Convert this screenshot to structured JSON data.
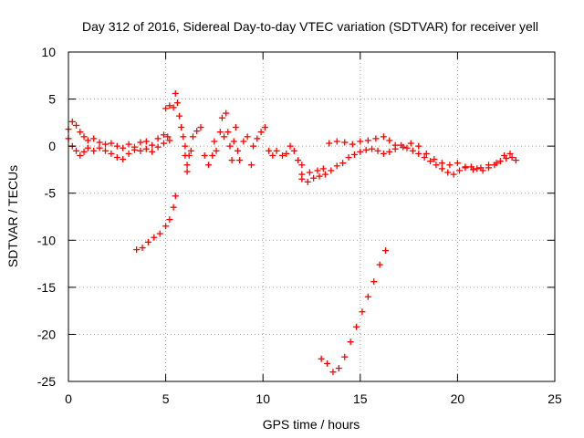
{
  "chart_data": {
    "type": "scatter",
    "title": "Day 312 of 2016, Sidereal Day-to-day VTEC variation (SDTVAR) for receiver yell",
    "xlabel": "GPS time / hours",
    "ylabel": "SDTVAR / TECUs",
    "xlim": [
      0,
      25
    ],
    "ylim": [
      -25,
      10
    ],
    "xticks": [
      "0",
      "5",
      "10",
      "15",
      "20",
      "25"
    ],
    "yticks": [
      "-25",
      "-20",
      "-15",
      "-10",
      "-5",
      "0",
      "5",
      "10"
    ],
    "xtick_values": [
      0,
      5,
      10,
      15,
      20,
      25
    ],
    "ytick_values": [
      -25,
      -20,
      -15,
      -10,
      -5,
      0,
      5,
      10
    ],
    "grid": true,
    "marker": "+",
    "marker_color": "#ff0000",
    "series": [
      {
        "name": "SDTVAR",
        "segments": [
          [
            [
              0.0,
              1.8
            ],
            [
              0.2,
              2.6
            ],
            [
              0.4,
              2.2
            ],
            [
              0.6,
              1.5
            ],
            [
              0.8,
              1.0
            ],
            [
              1.0,
              0.6
            ],
            [
              1.3,
              0.8
            ],
            [
              1.6,
              0.4
            ],
            [
              1.9,
              0.2
            ],
            [
              2.2,
              0.3
            ],
            [
              2.5,
              0.0
            ],
            [
              2.8,
              -0.2
            ],
            [
              3.1,
              0.2
            ],
            [
              3.4,
              -0.1
            ],
            [
              3.7,
              0.4
            ],
            [
              4.0,
              0.5
            ],
            [
              4.3,
              0.1
            ],
            [
              4.6,
              0.8
            ],
            [
              4.9,
              1.2
            ],
            [
              5.1,
              1.0
            ]
          ],
          [
            [
              0.0,
              0.8
            ],
            [
              0.2,
              0.0
            ],
            [
              0.4,
              -0.5
            ],
            [
              0.6,
              -1.0
            ],
            [
              0.8,
              -0.6
            ],
            [
              1.0,
              -0.2
            ],
            [
              1.3,
              -0.5
            ],
            [
              1.6,
              -0.2
            ],
            [
              1.9,
              -0.5
            ],
            [
              2.2,
              -0.8
            ],
            [
              2.5,
              -1.2
            ],
            [
              2.8,
              -1.4
            ],
            [
              3.1,
              -0.8
            ],
            [
              3.4,
              -0.4
            ],
            [
              3.7,
              -0.5
            ],
            [
              4.0,
              -0.3
            ],
            [
              4.3,
              -0.6
            ],
            [
              4.6,
              -0.1
            ],
            [
              4.9,
              0.3
            ],
            [
              5.2,
              0.6
            ]
          ],
          [
            [
              5.0,
              4.0
            ],
            [
              5.2,
              4.3
            ],
            [
              5.4,
              4.1
            ],
            [
              5.5,
              5.6
            ],
            [
              5.6,
              4.6
            ],
            [
              5.7,
              3.2
            ],
            [
              5.8,
              2.0
            ],
            [
              5.9,
              1.0
            ],
            [
              6.0,
              0.0
            ],
            [
              6.0,
              -1.0
            ],
            [
              6.1,
              -2.0
            ],
            [
              6.1,
              -2.7
            ],
            [
              6.2,
              -1.0
            ],
            [
              6.3,
              -0.5
            ],
            [
              6.4,
              1.0
            ],
            [
              6.6,
              1.6
            ],
            [
              6.8,
              2.0
            ]
          ],
          [
            [
              3.5,
              -11.0
            ],
            [
              3.8,
              -10.8
            ],
            [
              4.1,
              -10.2
            ],
            [
              4.4,
              -9.7
            ],
            [
              4.7,
              -9.3
            ],
            [
              5.0,
              -8.5
            ],
            [
              5.2,
              -7.8
            ],
            [
              5.4,
              -6.5
            ],
            [
              5.5,
              -5.3
            ]
          ],
          [
            [
              7.0,
              -1.0
            ],
            [
              7.2,
              -2.0
            ],
            [
              7.4,
              -1.0
            ],
            [
              7.5,
              0.5
            ],
            [
              7.6,
              -0.5
            ],
            [
              7.8,
              1.5
            ],
            [
              7.9,
              3.0
            ],
            [
              8.0,
              1.0
            ],
            [
              8.1,
              3.5
            ],
            [
              8.2,
              1.5
            ],
            [
              8.3,
              0.0
            ],
            [
              8.4,
              -1.5
            ],
            [
              8.5,
              0.5
            ],
            [
              8.6,
              2.0
            ],
            [
              8.7,
              -0.5
            ],
            [
              8.8,
              -1.5
            ],
            [
              9.0,
              0.5
            ],
            [
              9.2,
              1.0
            ],
            [
              9.4,
              -2.0
            ],
            [
              9.5,
              0.0
            ],
            [
              9.7,
              0.8
            ],
            [
              9.9,
              1.5
            ],
            [
              10.1,
              2.0
            ],
            [
              10.3,
              -0.5
            ],
            [
              10.5,
              -1.0
            ],
            [
              10.7,
              -0.5
            ],
            [
              11.0,
              -1.0
            ],
            [
              11.2,
              -0.8
            ],
            [
              11.4,
              0.0
            ],
            [
              11.6,
              -0.5
            ],
            [
              11.8,
              -1.5
            ],
            [
              12.0,
              -2.0
            ]
          ],
          [
            [
              12.0,
              -3.5
            ],
            [
              12.3,
              -3.8
            ],
            [
              12.6,
              -3.4
            ],
            [
              12.9,
              -3.2
            ],
            [
              13.2,
              -3.0
            ],
            [
              13.5,
              -2.6
            ],
            [
              13.8,
              -2.1
            ],
            [
              14.1,
              -1.8
            ],
            [
              14.4,
              -1.2
            ],
            [
              14.7,
              -0.9
            ],
            [
              15.0,
              -0.6
            ],
            [
              15.3,
              -0.4
            ],
            [
              15.6,
              -0.3
            ],
            [
              15.9,
              -0.5
            ],
            [
              16.2,
              -0.8
            ],
            [
              16.5,
              -0.6
            ],
            [
              16.8,
              -0.3
            ],
            [
              17.1,
              0.1
            ],
            [
              17.4,
              -0.2
            ],
            [
              17.7,
              -0.5
            ],
            [
              18.0,
              -0.8
            ],
            [
              18.3,
              -1.2
            ],
            [
              18.6,
              -1.6
            ],
            [
              18.9,
              -2.0
            ],
            [
              19.2,
              -2.4
            ],
            [
              19.5,
              -2.8
            ],
            [
              19.8,
              -3.0
            ],
            [
              20.1,
              -2.6
            ],
            [
              20.4,
              -2.3
            ],
            [
              20.7,
              -2.2
            ],
            [
              21.0,
              -2.4
            ],
            [
              21.3,
              -2.6
            ],
            [
              21.6,
              -2.3
            ],
            [
              21.9,
              -2.0
            ],
            [
              22.2,
              -1.6
            ],
            [
              22.5,
              -1.3
            ],
            [
              22.8,
              -1.2
            ],
            [
              23.0,
              -1.5
            ]
          ],
          [
            [
              13.4,
              0.3
            ],
            [
              13.8,
              0.5
            ],
            [
              14.2,
              0.4
            ],
            [
              14.6,
              0.2
            ],
            [
              15.0,
              0.5
            ],
            [
              15.4,
              0.6
            ],
            [
              15.8,
              0.8
            ],
            [
              16.2,
              1.0
            ],
            [
              16.5,
              0.6
            ],
            [
              16.8,
              0.1
            ],
            [
              17.2,
              -0.1
            ],
            [
              17.6,
              0.3
            ],
            [
              18.0,
              0.0
            ],
            [
              18.4,
              -0.8
            ],
            [
              18.8,
              -1.4
            ],
            [
              19.2,
              -1.8
            ],
            [
              19.6,
              -2.0
            ],
            [
              20.0,
              -1.8
            ],
            [
              20.4,
              -2.2
            ],
            [
              20.8,
              -2.5
            ],
            [
              21.2,
              -2.3
            ],
            [
              21.6,
              -2.0
            ],
            [
              22.0,
              -1.8
            ],
            [
              22.4,
              -1.0
            ],
            [
              22.7,
              -0.8
            ]
          ],
          [
            [
              13.0,
              -22.6
            ],
            [
              13.3,
              -23.1
            ],
            [
              13.6,
              -24.0
            ],
            [
              13.9,
              -23.6
            ],
            [
              14.2,
              -22.4
            ],
            [
              14.5,
              -20.8
            ],
            [
              14.8,
              -19.2
            ],
            [
              15.1,
              -17.6
            ],
            [
              15.4,
              -16.0
            ],
            [
              15.7,
              -14.4
            ],
            [
              16.0,
              -12.6
            ],
            [
              16.3,
              -11.1
            ]
          ],
          [
            [
              12.0,
              -3.0
            ],
            [
              12.4,
              -2.8
            ],
            [
              12.8,
              -2.6
            ],
            [
              13.1,
              -2.4
            ]
          ]
        ]
      }
    ]
  }
}
